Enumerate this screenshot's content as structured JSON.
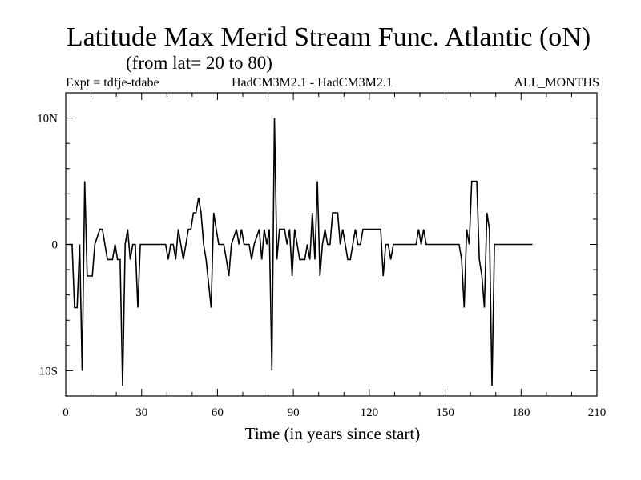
{
  "chart_data": {
    "type": "line",
    "title": "Latitude Max Merid Stream Func. Atlantic (oN)",
    "subtitle": "(from lat= 20 to 80)",
    "header_left": "Expt = tdfje-tdabe",
    "header_center": "HadCM3M2.1 - HadCM3M2.1",
    "header_right": "ALL_MONTHS",
    "xlabel": "Time (in years since start)",
    "ylabel": "",
    "xlim": [
      0,
      210
    ],
    "ylim": [
      -12,
      12
    ],
    "xticks": [
      0,
      30,
      60,
      90,
      120,
      150,
      180,
      210
    ],
    "xtick_labels": [
      "0",
      "30",
      "60",
      "90",
      "120",
      "150",
      "180",
      "210"
    ],
    "yticks": [
      -10,
      0,
      10
    ],
    "ytick_labels": [
      "10S",
      "0",
      "10N"
    ],
    "grid": false,
    "series": [
      {
        "color": "#000000",
        "points": [
          [
            0.5,
            0
          ],
          [
            2.5,
            0
          ],
          [
            3.5,
            -5
          ],
          [
            4.5,
            -5
          ],
          [
            5.5,
            0
          ],
          [
            6.5,
            -10
          ],
          [
            7.5,
            5
          ],
          [
            8.5,
            -2.5
          ],
          [
            10.5,
            -2.5
          ],
          [
            11.5,
            0
          ],
          [
            13.5,
            1.2
          ],
          [
            14.5,
            1.2
          ],
          [
            15.5,
            0
          ],
          [
            16.5,
            -1.2
          ],
          [
            18.5,
            -1.2
          ],
          [
            19.5,
            0
          ],
          [
            20.5,
            -1.2
          ],
          [
            21.5,
            -1.2
          ],
          [
            22.5,
            -11.2
          ],
          [
            23.5,
            0
          ],
          [
            24.5,
            1.2
          ],
          [
            25.5,
            -1.2
          ],
          [
            26.5,
            0
          ],
          [
            27.5,
            0
          ],
          [
            28.5,
            -5
          ],
          [
            29.5,
            0
          ],
          [
            39.5,
            0
          ],
          [
            40.5,
            -1.2
          ],
          [
            41.5,
            0
          ],
          [
            42.5,
            0
          ],
          [
            43.5,
            -1.2
          ],
          [
            44.5,
            1.2
          ],
          [
            45.5,
            0
          ],
          [
            46.5,
            -1.2
          ],
          [
            47.5,
            0
          ],
          [
            48.5,
            1.2
          ],
          [
            49.5,
            1.2
          ],
          [
            50.5,
            2.5
          ],
          [
            51.5,
            2.5
          ],
          [
            52.5,
            3.7
          ],
          [
            53.5,
            2.5
          ],
          [
            54.5,
            0
          ],
          [
            55.5,
            -1.2
          ],
          [
            57.5,
            -5
          ],
          [
            58.5,
            2.5
          ],
          [
            59.5,
            1.2
          ],
          [
            60.5,
            0
          ],
          [
            62.5,
            0
          ],
          [
            63.5,
            -1.2
          ],
          [
            64.5,
            -2.5
          ],
          [
            65.5,
            0
          ],
          [
            67.5,
            1.2
          ],
          [
            68.5,
            0
          ],
          [
            69.5,
            1.2
          ],
          [
            70.5,
            0
          ],
          [
            72.5,
            0
          ],
          [
            73.5,
            -1.2
          ],
          [
            74.5,
            0
          ],
          [
            76.5,
            1.2
          ],
          [
            77.5,
            -1.2
          ],
          [
            78.5,
            1.2
          ],
          [
            79.5,
            0
          ],
          [
            80.5,
            1.2
          ],
          [
            81.5,
            -10
          ],
          [
            82.5,
            10
          ],
          [
            83.5,
            -1.2
          ],
          [
            84.5,
            1.2
          ],
          [
            86.5,
            1.2
          ],
          [
            87.5,
            0
          ],
          [
            88.5,
            1.2
          ],
          [
            89.5,
            -2.5
          ],
          [
            90.5,
            1.2
          ],
          [
            91.5,
            0
          ],
          [
            92.5,
            -1.2
          ],
          [
            94.5,
            -1.2
          ],
          [
            95.5,
            0
          ],
          [
            96.5,
            -1.2
          ],
          [
            97.5,
            2.5
          ],
          [
            98.5,
            -1.2
          ],
          [
            99.5,
            5
          ],
          [
            100.5,
            -2.5
          ],
          [
            101.5,
            0
          ],
          [
            102.5,
            1.2
          ],
          [
            103.5,
            0
          ],
          [
            104.5,
            0
          ],
          [
            105.5,
            2.5
          ],
          [
            107.5,
            2.5
          ],
          [
            108.5,
            0
          ],
          [
            109.5,
            1.2
          ],
          [
            110.5,
            0
          ],
          [
            111.5,
            -1.2
          ],
          [
            112.5,
            -1.2
          ],
          [
            113.5,
            0
          ],
          [
            114.5,
            1.2
          ],
          [
            115.5,
            0
          ],
          [
            116.5,
            0
          ],
          [
            117.5,
            1.2
          ],
          [
            124.5,
            1.2
          ],
          [
            125.5,
            -2.5
          ],
          [
            126.5,
            0
          ],
          [
            127.5,
            0
          ],
          [
            128.5,
            -1.2
          ],
          [
            129.5,
            0
          ],
          [
            138.5,
            0
          ],
          [
            139.5,
            1.2
          ],
          [
            140.5,
            0
          ],
          [
            141.5,
            1.2
          ],
          [
            142.5,
            0
          ],
          [
            155.5,
            0
          ],
          [
            156.5,
            -1.2
          ],
          [
            157.5,
            -5
          ],
          [
            158.5,
            1.2
          ],
          [
            159.5,
            0
          ],
          [
            160.5,
            5
          ],
          [
            162.5,
            5
          ],
          [
            163.5,
            -1.2
          ],
          [
            164.5,
            -2.5
          ],
          [
            165.5,
            -5
          ],
          [
            166.5,
            2.5
          ],
          [
            167.5,
            1.2
          ],
          [
            168.5,
            -11.2
          ],
          [
            169.5,
            0
          ],
          [
            184.5,
            0
          ]
        ]
      }
    ]
  }
}
